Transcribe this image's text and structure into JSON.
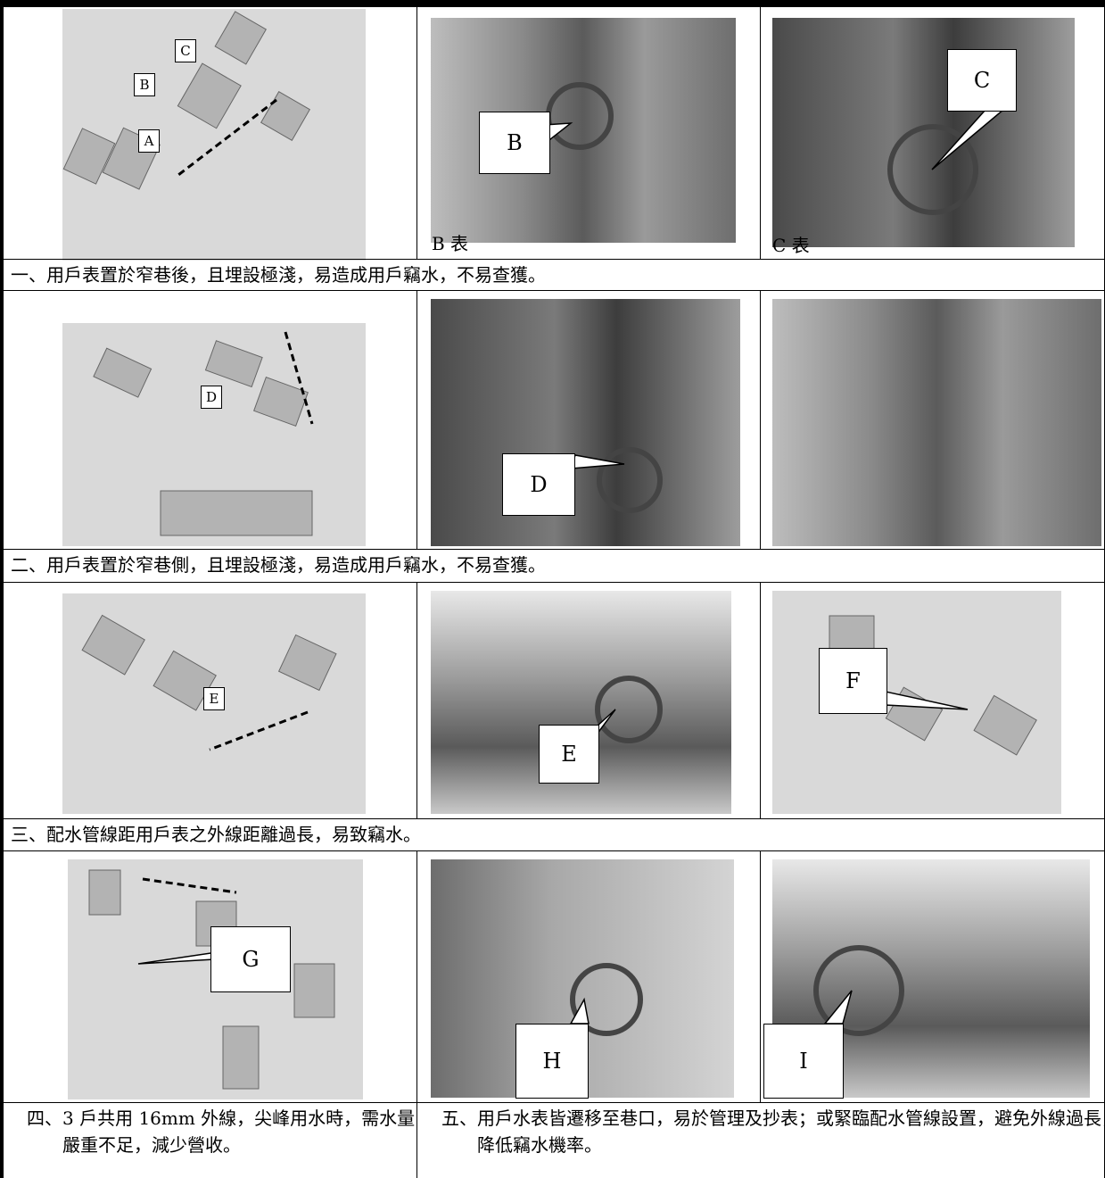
{
  "rows": [
    {
      "map": {
        "callouts": [
          "C",
          "B",
          "A"
        ]
      },
      "photo_left": {
        "callout": "B",
        "caption": "B 表"
      },
      "photo_right": {
        "callout": "C",
        "caption": "C 表"
      },
      "note": "一、用戶表置於窄巷後，且埋設極淺，易造成用戶竊水，不易查獲。"
    },
    {
      "map": {
        "callouts": [
          "D"
        ]
      },
      "photo_left": {
        "callout": "D"
      },
      "note": "二、用戶表置於窄巷側，且埋設極淺，易造成用戶竊水，不易查獲。"
    },
    {
      "map": {
        "callouts": [
          "E"
        ]
      },
      "photo_left": {
        "callout": "E"
      },
      "map_right": {
        "callouts": [
          "F"
        ]
      },
      "note": "三、配水管線距用戶表之外線距離過長，易致竊水。"
    },
    {
      "map": {
        "callouts": [
          "G"
        ]
      },
      "photo_left": {
        "callout": "H"
      },
      "photo_right": {
        "callout": "I"
      },
      "note_left": "四、3 戶共用 16mm 外線，尖峰用水時，需水量嚴重不足，減少營收。",
      "note_right": "五、用戶水表皆遷移至巷口，易於管理及抄表；或緊臨配水管線設置，避免外線過長，降低竊水機率。"
    }
  ]
}
